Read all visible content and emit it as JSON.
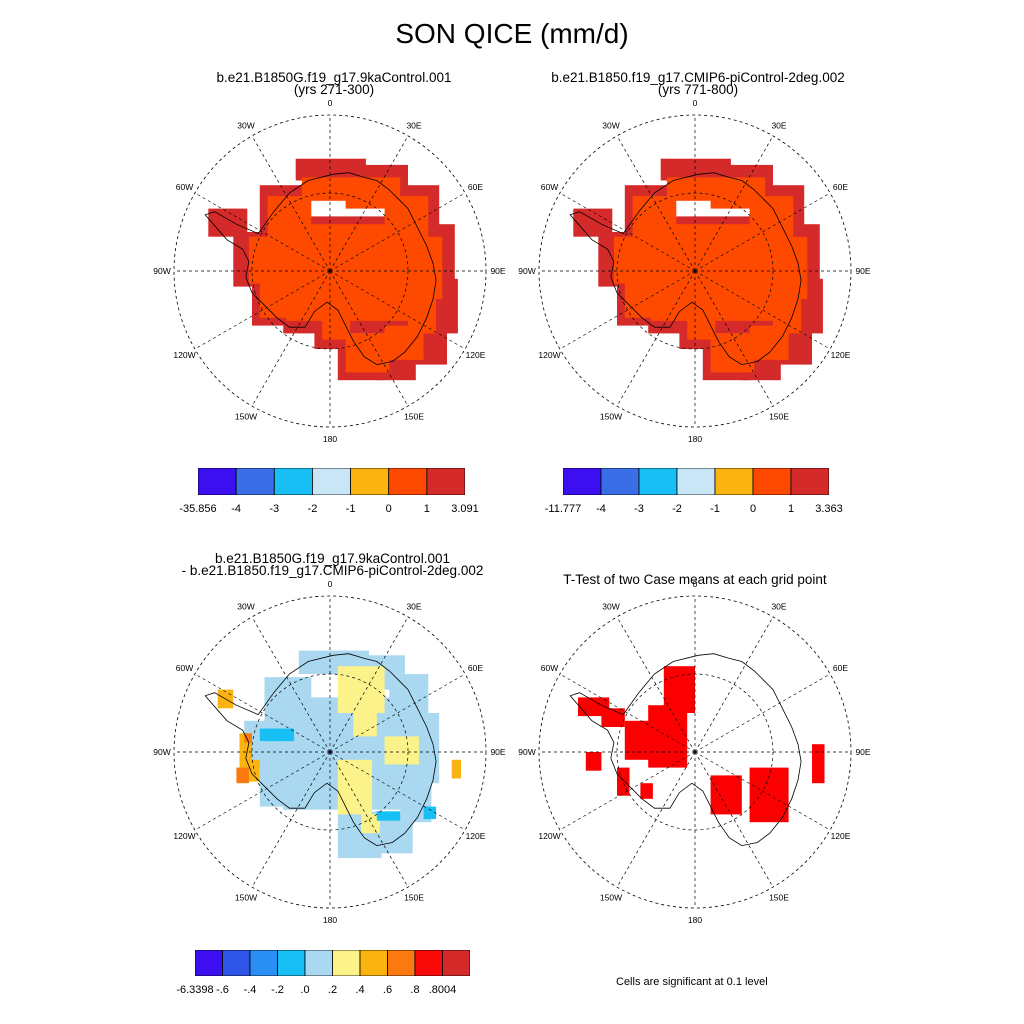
{
  "title": "SON QICE (mm/d)",
  "panels": [
    {
      "title_lines": [
        "b.e21.B1850G.f19_g17.9kaControl.001",
        "(yrs 271-300)"
      ],
      "type": "field",
      "colorbar": {
        "colors": [
          "#3b0ff0",
          "#3a6ee6",
          "#17bff5",
          "#c8e6f5",
          "#fbb40f",
          "#fd4a00",
          "#d42a2a"
        ],
        "labels": [
          "-35.856",
          "-4",
          "-3",
          "-2",
          "-1",
          "0",
          "1",
          "3.091"
        ]
      }
    },
    {
      "title_lines": [
        "b.e21.B1850.f19_g17.CMIP6-piControl-2deg.002",
        "(yrs 771-800)"
      ],
      "type": "field",
      "colorbar": {
        "colors": [
          "#3b0ff0",
          "#3a6ee6",
          "#17bff5",
          "#c8e6f5",
          "#fbb40f",
          "#fd4a00",
          "#d42a2a"
        ],
        "labels": [
          "-11.777",
          "-4",
          "-3",
          "-2",
          "-1",
          "0",
          "1",
          "3.363"
        ]
      }
    },
    {
      "title_lines": [
        "b.e21.B1850G.f19_g17.9kaControl.001",
        "- b.e21.B1850.f19_g17.CMIP6-piControl-2deg.002"
      ],
      "type": "difference",
      "colorbar": {
        "colors": [
          "#3b0ff0",
          "#2f55e8",
          "#2a8ff5",
          "#17bff5",
          "#a9d8f0",
          "#fbf38a",
          "#fbb40f",
          "#fb7a10",
          "#fb0a0a",
          "#d42a2a"
        ],
        "labels": [
          "-6.3398",
          "-.6",
          "-.4",
          "-.2",
          ".0",
          ".2",
          ".4",
          ".6",
          ".8",
          ".8004"
        ]
      }
    },
    {
      "title_lines": [
        "T-Test of two Case means at each grid point"
      ],
      "type": "significance",
      "footnote": "Cells are significant at 0.1 level"
    }
  ],
  "map_labels": {
    "longitudes": [
      "0",
      "30E",
      "60E",
      "90E",
      "120E",
      "150E",
      "180",
      "150W",
      "120W",
      "90W",
      "60W",
      "30W"
    ]
  },
  "colors": {
    "field_outer": "#d42a2a",
    "field_inner": "#fd4a00",
    "diff_main": "#a9d8f0",
    "diff_positive": "#fbf38a",
    "diff_orange": "#fbb40f",
    "diff_darkorange": "#fb7a10",
    "diff_blue": "#17bff5",
    "significant": "#fb0000"
  }
}
